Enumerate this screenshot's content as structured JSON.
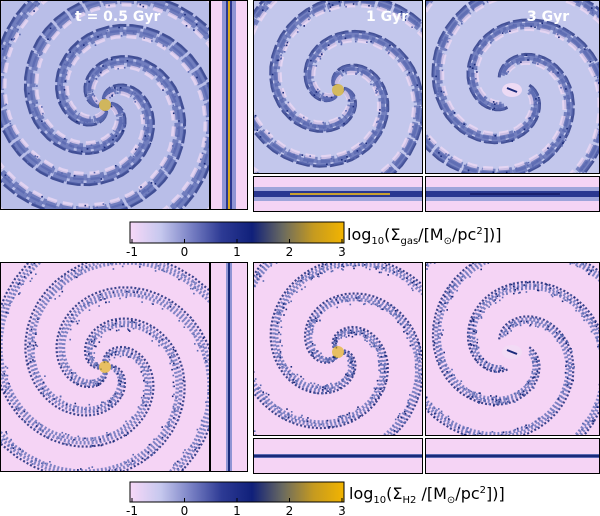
{
  "colors": {
    "background_pink": "#f5d4f5",
    "pale_blue": "#b8bde6",
    "mid_blue": "#5a68b0",
    "dark_blue": "#1a2a7a",
    "gold": "#e0b000",
    "frame": "#000000"
  },
  "colormap_stops": [
    "#f8d8f8",
    "#c6c8ee",
    "#7880c4",
    "#2d3a94",
    "#10207a",
    "#6a6a60",
    "#c59a20",
    "#f2b400"
  ],
  "panels": {
    "t05": "t = 0.5 Gyr",
    "t1": "1 Gyr",
    "t3": "3 Gyr"
  },
  "colorbars": {
    "ticks": [
      "-1",
      "0",
      "1",
      "2",
      "3"
    ],
    "gas": {
      "prefix": "log",
      "base": "10",
      "open": "(Σ",
      "subscript": "gas",
      "middle": "/[M",
      "sun": "⊙",
      "unit": "/pc",
      "power": "2",
      "close": "])]"
    },
    "h2": {
      "prefix": "log",
      "base": "10",
      "open": "(Σ",
      "subscript": "H2",
      "middle": " /[M",
      "sun": "⊙",
      "unit": "/pc",
      "power": "2",
      "close": "])]"
    }
  }
}
